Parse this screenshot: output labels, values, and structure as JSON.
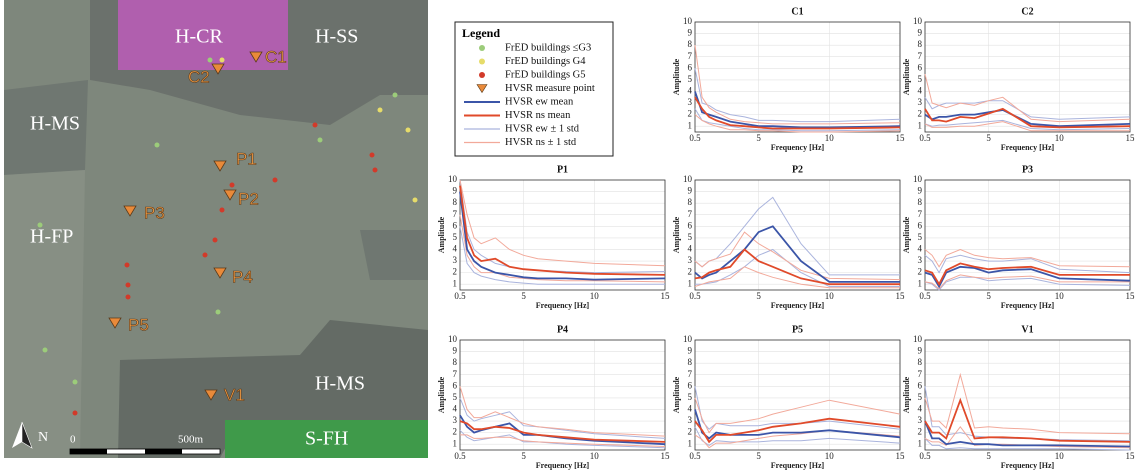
{
  "map": {
    "zones": [
      "H-CR",
      "H-SS",
      "H-MS",
      "H-FP",
      "H-MS",
      "S-FH"
    ],
    "points": [
      "C1",
      "C2",
      "P1",
      "P2",
      "P3",
      "P4",
      "P5",
      "V1"
    ],
    "scale": [
      "0",
      "500m"
    ],
    "north": "N"
  },
  "legend": {
    "title": "Legend",
    "items": [
      {
        "name": "FrED buildings ≤G3",
        "color": "#9ccc7a",
        "marker": "circle"
      },
      {
        "name": "FrED buildings G4",
        "color": "#e6dc6a",
        "marker": "circle"
      },
      {
        "name": "FrED buildings G5",
        "color": "#d23a2a",
        "marker": "circle"
      },
      {
        "name": "HVSR measure point",
        "color": "#e98a3a",
        "marker": "triangle"
      },
      {
        "name": "HVSR ew mean",
        "color": "#3b55a8",
        "marker": "line"
      },
      {
        "name": "HVSR ns mean",
        "color": "#e04a2a",
        "marker": "line"
      },
      {
        "name": "HVSR ew ± 1 std",
        "color": "#aab4dd",
        "marker": "line"
      },
      {
        "name": "HVSR ns ± 1 std",
        "color": "#f2a99a",
        "marker": "line"
      }
    ]
  },
  "chart_data": [
    {
      "type": "line",
      "title": "C1",
      "x_label": "Frequency [Hz]",
      "y_label": "Amplitude",
      "x": [
        0.5,
        1,
        1.5,
        2,
        3,
        4,
        5,
        6,
        8,
        10,
        15
      ],
      "xlim": [
        0.5,
        15
      ],
      "ylim": [
        0.5,
        10
      ],
      "xticks": [
        0.5,
        5,
        10,
        15
      ],
      "yticks": [
        1,
        2,
        3,
        4,
        5,
        6,
        7,
        8,
        9,
        10
      ],
      "grid": true,
      "series": [
        {
          "color": "#aab4dd",
          "upper": [
            6,
            3,
            2.8,
            2.4,
            2,
            1.8,
            1.5,
            1.5,
            1.4,
            1.4,
            1.6
          ],
          "lower": [
            2.5,
            1.5,
            1.3,
            1.2,
            1,
            0.8,
            0.7,
            0.7,
            0.6,
            0.6,
            0.7
          ]
        },
        {
          "color": "#f2a99a",
          "upper": [
            8,
            3.5,
            2.6,
            2.2,
            1.6,
            1.4,
            1.3,
            1.2,
            1.2,
            1.2,
            1.3
          ],
          "lower": [
            2,
            1.5,
            1.2,
            1,
            0.7,
            0.7,
            0.6,
            0.6,
            0.5,
            0.5,
            0.6
          ]
        },
        {
          "color": "#3b55a8",
          "values": [
            4,
            2.2,
            2,
            1.8,
            1.4,
            1.2,
            1,
            1,
            0.9,
            0.9,
            1
          ]
        },
        {
          "color": "#e04a2a",
          "values": [
            3.5,
            2.5,
            1.8,
            1.5,
            1.1,
            1,
            0.9,
            0.8,
            0.8,
            0.8,
            0.9
          ]
        }
      ]
    },
    {
      "type": "line",
      "title": "C2",
      "x_label": "Frequency [Hz]",
      "y_label": "Amplitude",
      "x": [
        0.5,
        1,
        1.5,
        2,
        3,
        4,
        5,
        6,
        8,
        10,
        15
      ],
      "xlim": [
        0.5,
        15
      ],
      "ylim": [
        0.5,
        10
      ],
      "xticks": [
        0.5,
        5,
        10,
        15
      ],
      "yticks": [
        1,
        2,
        3,
        4,
        5,
        6,
        7,
        8,
        9,
        10
      ],
      "grid": true,
      "series": [
        {
          "color": "#aab4dd",
          "upper": [
            3.5,
            2.5,
            2.8,
            3,
            3,
            3,
            3.2,
            3.2,
            1.8,
            1.6,
            1.8
          ],
          "lower": [
            1.2,
            1,
            1.1,
            1.1,
            1.2,
            1.3,
            1.4,
            1.5,
            0.8,
            0.7,
            0.8
          ]
        },
        {
          "color": "#f2a99a",
          "upper": [
            5.5,
            3,
            2.8,
            2.6,
            3,
            2.8,
            3.2,
            3.5,
            1.6,
            1.4,
            1.6
          ],
          "lower": [
            1.2,
            0.9,
            0.9,
            0.9,
            1,
            1,
            1.2,
            1.4,
            0.6,
            0.6,
            0.6
          ]
        },
        {
          "color": "#3b55a8",
          "values": [
            2,
            1.6,
            1.8,
            1.8,
            2,
            2,
            2.2,
            2.4,
            1.2,
            1,
            1.2
          ]
        },
        {
          "color": "#e04a2a",
          "values": [
            2.5,
            1.5,
            1.5,
            1.4,
            1.8,
            1.7,
            2.1,
            2.5,
            1,
            0.9,
            1
          ]
        }
      ]
    },
    {
      "type": "line",
      "title": "P1",
      "x_label": "Frequency [Hz]",
      "y_label": "Amplitude",
      "x": [
        0.5,
        1,
        1.5,
        2,
        3,
        4,
        5,
        6,
        8,
        10,
        15
      ],
      "xlim": [
        0.5,
        15
      ],
      "ylim": [
        0.5,
        10
      ],
      "xticks": [
        0.5,
        5,
        10,
        15
      ],
      "yticks": [
        1,
        2,
        3,
        4,
        5,
        6,
        7,
        8,
        9,
        10
      ],
      "grid": true,
      "series": [
        {
          "color": "#aab4dd",
          "upper": [
            10,
            5.5,
            4,
            3.5,
            2.8,
            2.5,
            2.3,
            2.2,
            2.1,
            2,
            2.1
          ],
          "lower": [
            6,
            2.8,
            2,
            1.7,
            1.4,
            1.2,
            1.1,
            1,
            1,
            1,
            1
          ]
        },
        {
          "color": "#f2a99a",
          "upper": [
            10,
            7,
            5,
            4.5,
            5,
            4,
            3.5,
            3.2,
            3,
            2.8,
            2.6
          ],
          "lower": [
            7,
            3.5,
            2.5,
            2,
            2,
            1.6,
            1.5,
            1.4,
            1.3,
            1.3,
            1.2
          ]
        },
        {
          "color": "#3b55a8",
          "values": [
            9,
            4,
            3,
            2.5,
            2,
            1.8,
            1.6,
            1.5,
            1.5,
            1.4,
            1.5
          ]
        },
        {
          "color": "#e04a2a",
          "values": [
            9.5,
            5,
            3.5,
            3,
            3.2,
            2.5,
            2.3,
            2.2,
            2,
            1.9,
            1.8
          ]
        }
      ]
    },
    {
      "type": "line",
      "title": "P2",
      "x_label": "Frequency [Hz]",
      "y_label": "Amplitude",
      "x": [
        0.5,
        1,
        1.5,
        2,
        3,
        4,
        5,
        6,
        8,
        10,
        15
      ],
      "xlim": [
        0.5,
        15
      ],
      "ylim": [
        0.5,
        10
      ],
      "xticks": [
        0.5,
        5,
        10,
        15
      ],
      "yticks": [
        1,
        2,
        3,
        4,
        5,
        6,
        7,
        8,
        9,
        10
      ],
      "grid": true,
      "series": [
        {
          "color": "#aab4dd",
          "upper": [
            3,
            2.5,
            3,
            3.2,
            4.5,
            6,
            7.5,
            8.5,
            4.5,
            1.8,
            1.8
          ],
          "lower": [
            1,
            1,
            1.1,
            1.2,
            1.8,
            2.5,
            3.5,
            4,
            2,
            0.8,
            0.8
          ]
        },
        {
          "color": "#f2a99a",
          "upper": [
            3,
            2.5,
            3,
            3.2,
            3.6,
            5.5,
            4.5,
            3.8,
            2.2,
            1.5,
            1.4
          ],
          "lower": [
            0.8,
            1,
            1.2,
            1.3,
            1.5,
            2.5,
            2,
            1.6,
            1,
            0.7,
            0.7
          ]
        },
        {
          "color": "#3b55a8",
          "values": [
            2,
            1.5,
            1.8,
            2,
            3,
            4,
            5.5,
            6,
            3,
            1.2,
            1.2
          ]
        },
        {
          "color": "#e04a2a",
          "values": [
            1.5,
            1.6,
            2,
            2.2,
            2.5,
            4,
            3,
            2.5,
            1.5,
            1,
            1
          ]
        }
      ]
    },
    {
      "type": "line",
      "title": "P3",
      "x_label": "Frequency [Hz]",
      "y_label": "Amplitude",
      "x": [
        0.5,
        1,
        1.5,
        2,
        3,
        4,
        5,
        6,
        8,
        10,
        15
      ],
      "xlim": [
        0.5,
        15
      ],
      "ylim": [
        0.5,
        10
      ],
      "xticks": [
        0.5,
        5,
        10,
        15
      ],
      "yticks": [
        1,
        2,
        3,
        4,
        5,
        6,
        7,
        8,
        9,
        10
      ],
      "grid": true,
      "series": [
        {
          "color": "#aab4dd",
          "upper": [
            3.5,
            3,
            2,
            3.2,
            3.5,
            3.2,
            3,
            3,
            3.2,
            2.3,
            2
          ],
          "lower": [
            1.2,
            1,
            0.5,
            1.2,
            1.6,
            1.6,
            1.3,
            1.4,
            1.5,
            1,
            0.9
          ]
        },
        {
          "color": "#f2a99a",
          "upper": [
            4,
            3.5,
            2.5,
            3.5,
            4,
            3.5,
            3.3,
            3.2,
            3.3,
            2.6,
            2.5
          ],
          "lower": [
            1.2,
            1.1,
            0.6,
            1.3,
            1.8,
            1.6,
            1.5,
            1.6,
            1.7,
            1.2,
            1.2
          ]
        },
        {
          "color": "#3b55a8",
          "values": [
            2,
            1.8,
            0.8,
            2,
            2.5,
            2.4,
            2,
            2.2,
            2.3,
            1.5,
            1.3
          ]
        },
        {
          "color": "#e04a2a",
          "values": [
            2.2,
            2,
            1,
            2.2,
            2.8,
            2.5,
            2.3,
            2.4,
            2.5,
            1.8,
            1.8
          ]
        }
      ]
    },
    {
      "type": "line",
      "title": "P4",
      "x_label": "Frequency [Hz]",
      "y_label": "Amplitude",
      "x": [
        0.5,
        1,
        1.5,
        2,
        3,
        4,
        5,
        6,
        8,
        10,
        15
      ],
      "xlim": [
        0.5,
        15
      ],
      "ylim": [
        0.5,
        10
      ],
      "xticks": [
        0.5,
        5,
        10,
        15
      ],
      "yticks": [
        1,
        2,
        3,
        4,
        5,
        6,
        7,
        8,
        9,
        10
      ],
      "grid": true,
      "series": [
        {
          "color": "#aab4dd",
          "upper": [
            5,
            3.5,
            3,
            3.2,
            3.5,
            3.8,
            2.6,
            2.5,
            2.2,
            1.9,
            1.5
          ],
          "lower": [
            2.2,
            1.6,
            1.3,
            1.4,
            1.6,
            1.8,
            1.2,
            1.2,
            1,
            0.9,
            0.7
          ]
        },
        {
          "color": "#f2a99a",
          "upper": [
            6,
            4,
            3.3,
            3.3,
            3.8,
            3.3,
            2.8,
            2.5,
            2.3,
            2,
            1.7
          ],
          "lower": [
            1.8,
            1.8,
            1.5,
            1.5,
            1.6,
            1.6,
            1.3,
            1.2,
            1.1,
            1,
            0.8
          ]
        },
        {
          "color": "#3b55a8",
          "values": [
            3.5,
            2.5,
            2,
            2.2,
            2.5,
            2.8,
            1.8,
            1.8,
            1.5,
            1.3,
            1
          ]
        },
        {
          "color": "#e04a2a",
          "values": [
            3,
            2.8,
            2.3,
            2.3,
            2.5,
            2.4,
            2,
            1.8,
            1.6,
            1.4,
            1.2
          ]
        }
      ]
    },
    {
      "type": "line",
      "title": "P5",
      "x_label": "Frequency [Hz]",
      "y_label": "Amplitude",
      "x": [
        0.5,
        1,
        1.5,
        2,
        3,
        4,
        5,
        6,
        8,
        10,
        15
      ],
      "xlim": [
        0.5,
        15
      ],
      "ylim": [
        0.5,
        10
      ],
      "xticks": [
        0.5,
        5,
        10,
        15
      ],
      "yticks": [
        1,
        2,
        3,
        4,
        5,
        6,
        7,
        8,
        9,
        10
      ],
      "grid": true,
      "series": [
        {
          "color": "#aab4dd",
          "upper": [
            6,
            3,
            2.3,
            2.8,
            2.6,
            2.6,
            2.6,
            2.8,
            2.8,
            3,
            2.3
          ],
          "lower": [
            2.5,
            1.3,
            0.9,
            1.3,
            1.2,
            1.2,
            1.2,
            1.3,
            1.3,
            1.5,
            1.1
          ]
        },
        {
          "color": "#f2a99a",
          "upper": [
            5,
            3.2,
            2,
            2.8,
            2.8,
            3,
            3.2,
            3.6,
            4.2,
            4.8,
            3.6
          ],
          "lower": [
            1.8,
            1.4,
            0.7,
            1.1,
            1.1,
            1.3,
            1.5,
            1.7,
            1.9,
            2.2,
            1.7
          ]
        },
        {
          "color": "#3b55a8",
          "values": [
            4,
            2,
            1.5,
            2,
            1.8,
            1.8,
            1.8,
            2,
            2,
            2.2,
            1.6
          ]
        },
        {
          "color": "#e04a2a",
          "values": [
            3,
            2.2,
            1.2,
            1.8,
            1.8,
            2,
            2.2,
            2.5,
            2.8,
            3.2,
            2.5
          ]
        }
      ]
    },
    {
      "type": "line",
      "title": "V1",
      "x_label": "Frequency [Hz]",
      "y_label": "Amplitude",
      "x": [
        0.5,
        1,
        1.5,
        2,
        3,
        4,
        5,
        6,
        8,
        10,
        15
      ],
      "xlim": [
        0.5,
        15
      ],
      "ylim": [
        0.5,
        10
      ],
      "xticks": [
        0.5,
        5,
        10,
        15
      ],
      "yticks": [
        1,
        2,
        3,
        4,
        5,
        6,
        7,
        8,
        9,
        10
      ],
      "grid": true,
      "series": [
        {
          "color": "#aab4dd",
          "upper": [
            6,
            2.5,
            2.5,
            1.8,
            2,
            1.7,
            1.6,
            1.5,
            1.5,
            1.4,
            1.3
          ],
          "lower": [
            1.5,
            0.9,
            0.9,
            0.6,
            0.7,
            0.6,
            0.6,
            0.6,
            0.6,
            0.6,
            0.5
          ]
        },
        {
          "color": "#f2a99a",
          "upper": [
            5,
            3,
            3,
            2.4,
            7,
            2.4,
            2.5,
            2.4,
            2.3,
            2,
            1.9
          ],
          "lower": [
            1.5,
            1.2,
            1.2,
            0.9,
            2.5,
            0.9,
            1,
            1,
            0.9,
            0.8,
            0.7
          ]
        },
        {
          "color": "#3b55a8",
          "values": [
            3,
            1.5,
            1.5,
            1,
            1.2,
            1,
            1,
            0.9,
            0.9,
            0.9,
            0.8
          ]
        },
        {
          "color": "#e04a2a",
          "values": [
            3,
            2,
            2,
            1.5,
            4.8,
            1.5,
            1.6,
            1.6,
            1.5,
            1.3,
            1.2
          ]
        }
      ]
    }
  ]
}
